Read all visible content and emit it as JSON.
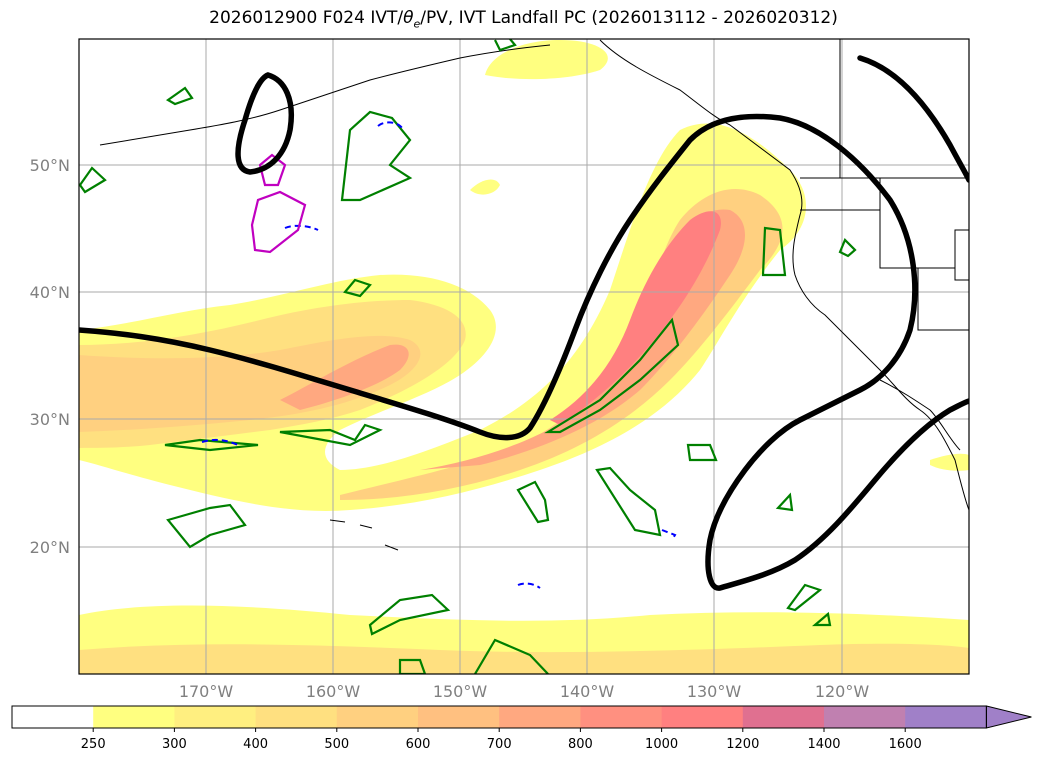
{
  "title": {
    "prefix": "2026012900 F024 IVT/",
    "theta": "θ",
    "theta_sub": "e",
    "suffix": "/PV, IVT Landfall PC (2026013112 - 2026020312)"
  },
  "map": {
    "lat_labels": [
      "50°N",
      "40°N",
      "30°N",
      "20°N"
    ],
    "lon_labels": [
      "170°W",
      "160°W",
      "150°W",
      "140°W",
      "130°W",
      "120°W"
    ],
    "grid_color": "#aaaaaa",
    "coast_color": "#000000"
  },
  "colorbar": {
    "labels": [
      "250",
      "300",
      "400",
      "500",
      "600",
      "700",
      "800",
      "1000",
      "1200",
      "1400",
      "1600"
    ],
    "colors": [
      "#ffffff",
      "#ffff80",
      "#ffef80",
      "#ffe080",
      "#ffd080",
      "#ffc080",
      "#ffa880",
      "#ff9080",
      "#ff8080",
      "#e07090",
      "#c080b0",
      "#a080c8"
    ]
  },
  "contours": {
    "ivt_pc_color": "#000000",
    "theta_color": "#008000",
    "pv_color": "#0000ff",
    "magenta_color": "#c000c0"
  }
}
